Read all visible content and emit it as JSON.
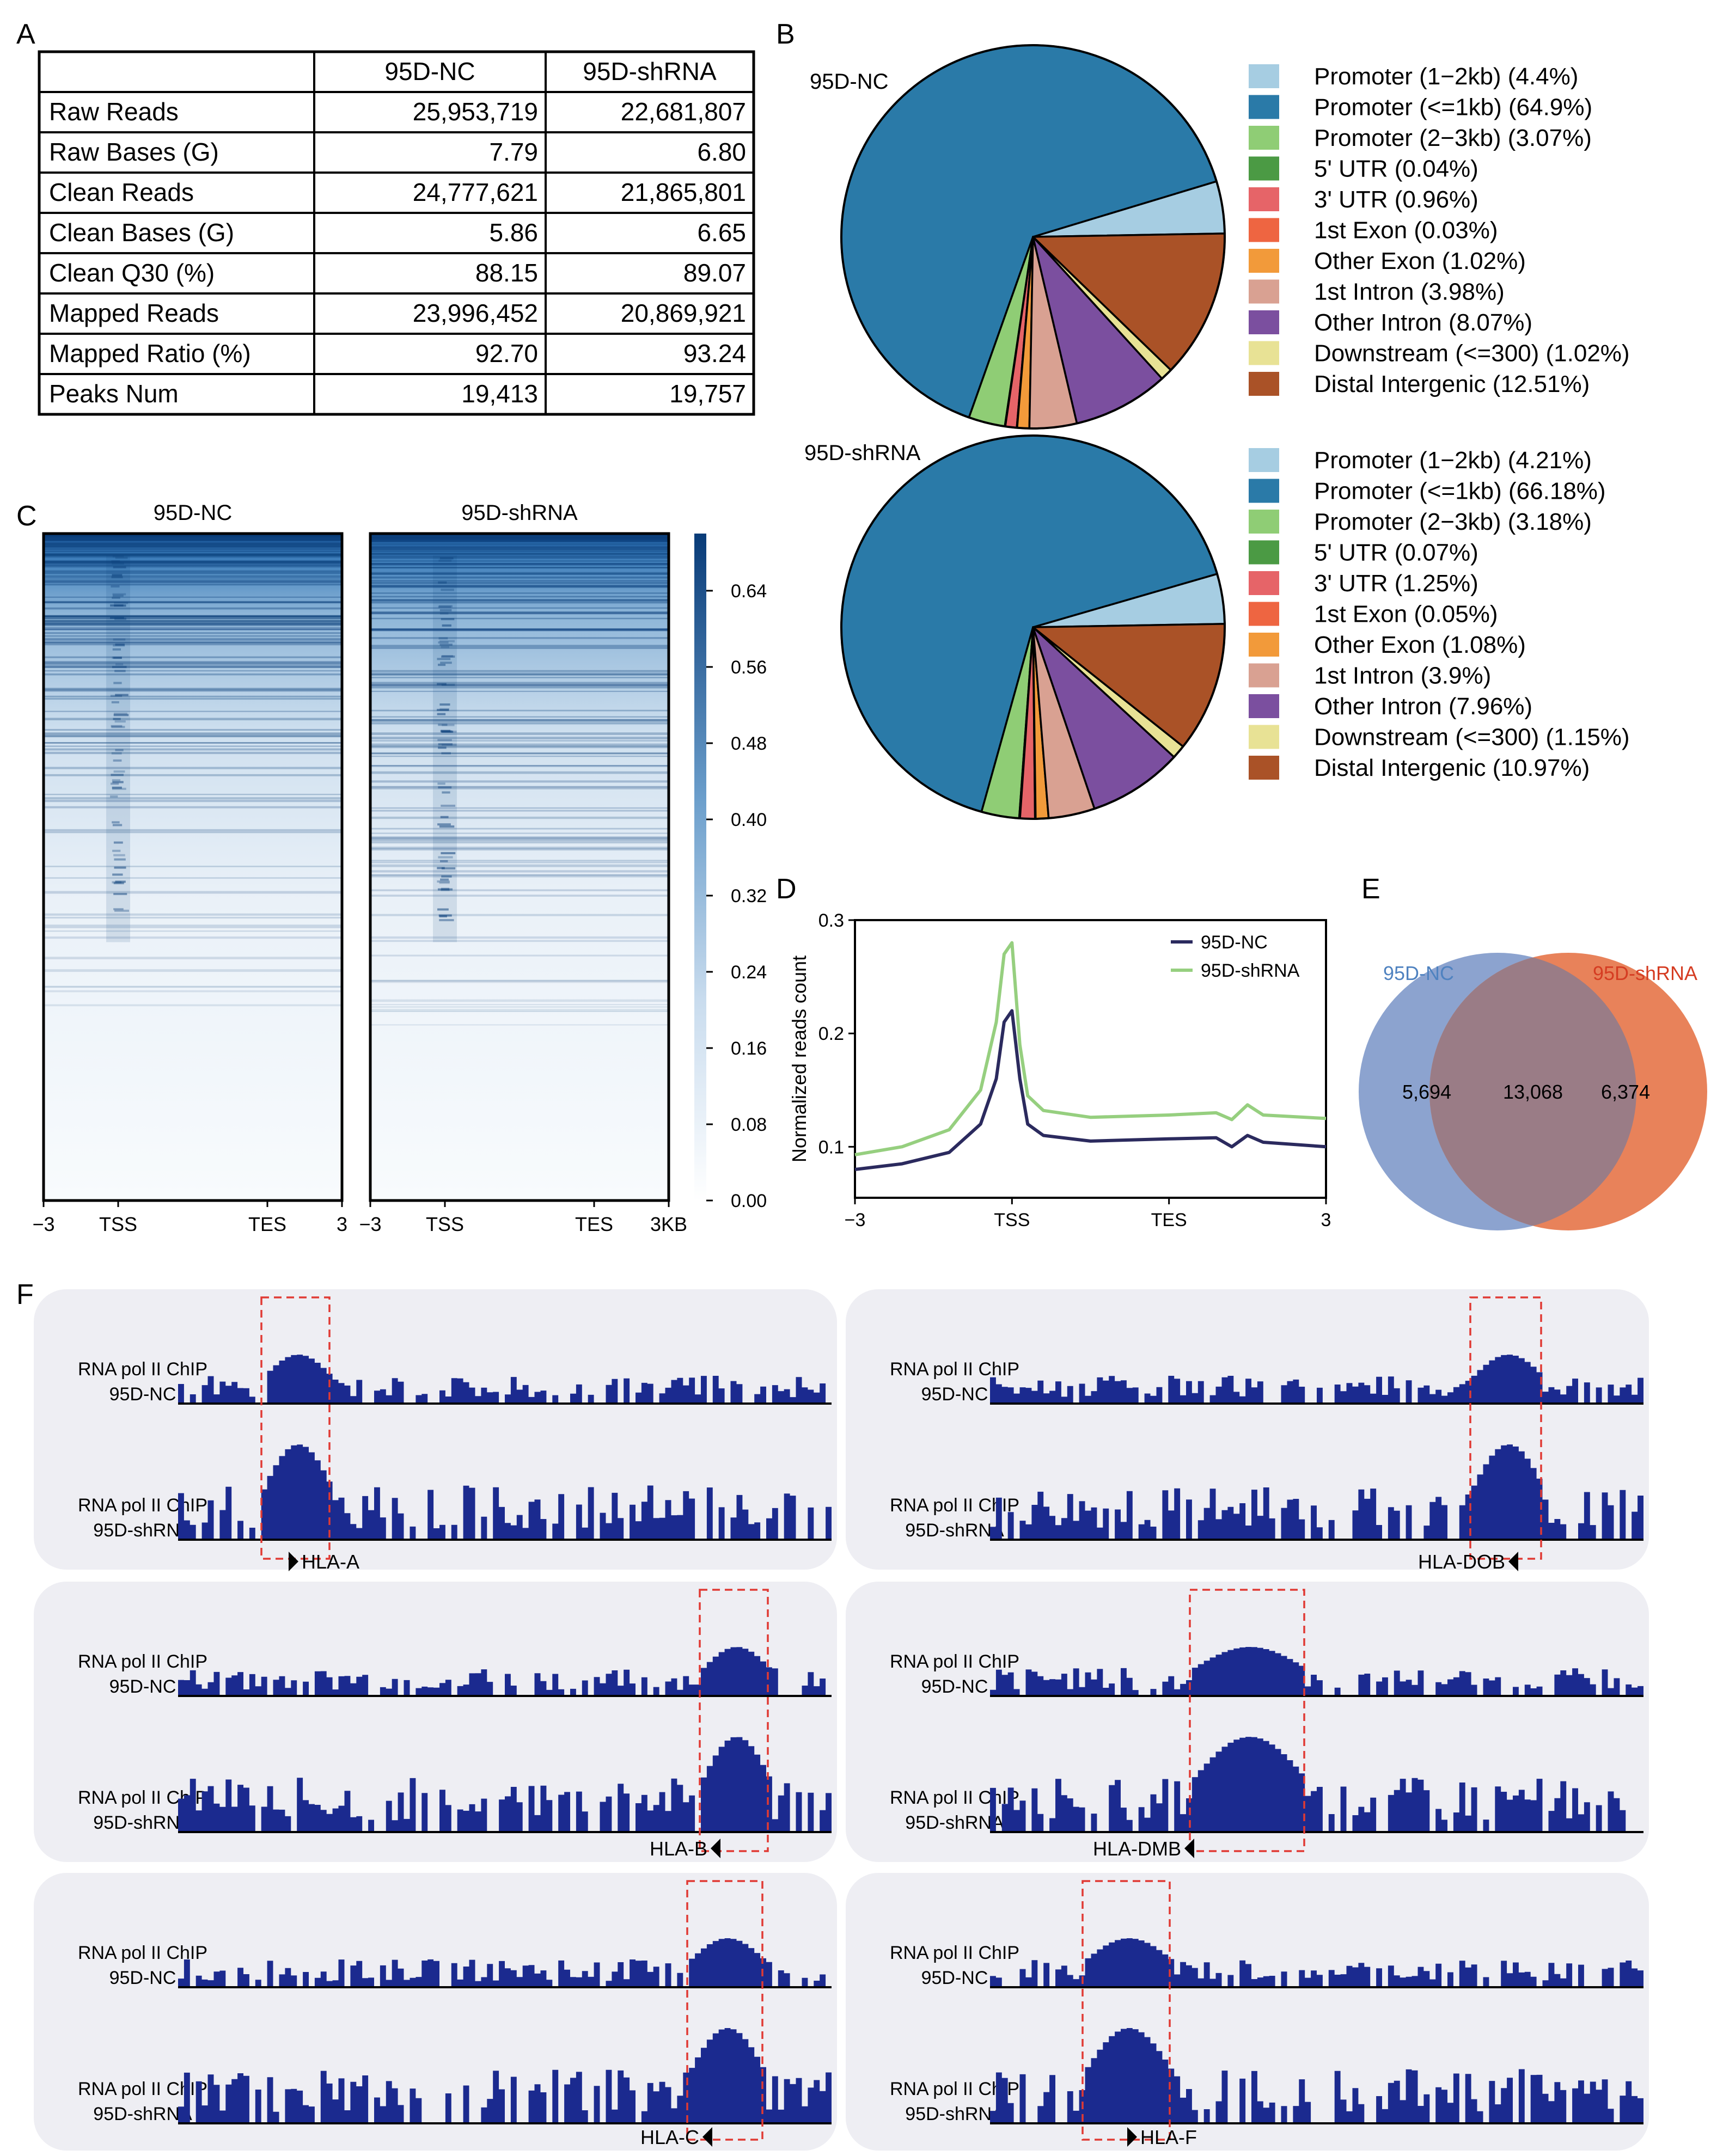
{
  "panels": {
    "a": "A",
    "b": "B",
    "c": "C",
    "d": "D",
    "e": "E",
    "f": "F"
  },
  "table": {
    "headers": [
      "",
      "95D-NC",
      "95D-shRNA"
    ],
    "rows": [
      [
        "Raw Reads",
        "25,953,719",
        "22,681,807"
      ],
      [
        "Raw Bases (G)",
        "7.79",
        "6.80"
      ],
      [
        "Clean Reads",
        "24,777,621",
        "21,865,801"
      ],
      [
        "Clean Bases (G)",
        "5.86",
        "6.65"
      ],
      [
        "Clean Q30 (%)",
        "88.15",
        "89.07"
      ],
      [
        "Mapped Reads",
        "23,996,452",
        "20,869,921"
      ],
      [
        "Mapped Ratio (%)",
        "92.70",
        "93.24"
      ],
      [
        "Peaks Num",
        "19,413",
        "19,757"
      ]
    ]
  },
  "colors": {
    "pie": [
      "#a6cde2",
      "#2a7aa8",
      "#8fcd75",
      "#4b9a44",
      "#e66468",
      "#ee6541",
      "#f29a3a",
      "#d9a192",
      "#7b4f9f",
      "#e8e295",
      "#aa5227"
    ],
    "heat_dark": "#0b3f7a",
    "nc_line": "#2b2a5e",
    "sh_line": "#96cf7f",
    "venn_nc": "#8ca3cf",
    "venn_sh": "#e8825a",
    "venn_overlap": "#9a7c86",
    "venn_nc_text": "#4f82c0",
    "venn_sh_text": "#d53c22",
    "track_fill": "#1b2a8f",
    "track_bg": "#eeeef3",
    "box": "#e03a34"
  },
  "chart_data": [
    {
      "type": "pie",
      "title": "95D-NC",
      "categories": [
        "Promoter (1−2kb)",
        "Promoter (<=1kb)",
        "Promoter (2−3kb)",
        "5' UTR",
        "3' UTR",
        "1st Exon",
        "Other Exon",
        "1st Intron",
        "Other Intron",
        "Downstream (<=300)",
        "Distal Intergenic"
      ],
      "values": [
        4.4,
        64.9,
        3.07,
        0.04,
        0.96,
        0.03,
        1.02,
        3.98,
        8.07,
        1.02,
        12.51
      ],
      "legend": [
        "Promoter (1−2kb) (4.4%)",
        "Promoter (<=1kb) (64.9%)",
        "Promoter (2−3kb) (3.07%)",
        "5' UTR (0.04%)",
        "3' UTR (0.96%)",
        "1st Exon (0.03%)",
        "Other Exon (1.02%)",
        "1st Intron (3.98%)",
        "Other Intron (8.07%)",
        "Downstream (<=300) (1.02%)",
        "Distal Intergenic (12.51%)"
      ],
      "legend_position": "right"
    },
    {
      "type": "pie",
      "title": "95D-shRNA",
      "categories": [
        "Promoter (1−2kb)",
        "Promoter (<=1kb)",
        "Promoter (2−3kb)",
        "5' UTR",
        "3' UTR",
        "1st Exon",
        "Other Exon",
        "1st Intron",
        "Other Intron",
        "Downstream (<=300)",
        "Distal Intergenic"
      ],
      "values": [
        4.21,
        66.18,
        3.18,
        0.07,
        1.25,
        0.05,
        1.08,
        3.9,
        7.96,
        1.15,
        10.97
      ],
      "legend": [
        "Promoter (1−2kb) (4.21%)",
        "Promoter (<=1kb) (66.18%)",
        "Promoter (2−3kb) (3.18%)",
        "5' UTR (0.07%)",
        "3' UTR (1.25%)",
        "1st Exon (0.05%)",
        "Other Exon (1.08%)",
        "1st Intron (3.9%)",
        "Other Intron (7.96%)",
        "Downstream (<=300) (1.15%)",
        "Distal Intergenic (10.97%)"
      ],
      "legend_position": "right"
    },
    {
      "type": "heatmap",
      "panel_titles": [
        "95D-NC",
        "95D-shRNA"
      ],
      "x_tick_labels": [
        [
          "−3",
          "TSS",
          "TES",
          "3"
        ],
        [
          "−3",
          "TSS",
          "TES",
          "3KB"
        ]
      ],
      "colorbar_ticks": [
        0.64,
        0.56,
        0.48,
        0.4,
        0.32,
        0.24,
        0.16,
        0.08,
        0.0
      ],
      "colorbar_labels": [
        "0.64",
        "0.56",
        "0.48",
        "0.40",
        "0.32",
        "0.24",
        "0.16",
        "0.08",
        "0.00"
      ],
      "colorbar_range": [
        0,
        0.7
      ]
    },
    {
      "type": "line",
      "ylabel": "Normalized reads count",
      "x_tick_labels": [
        "−3",
        "TSS",
        "TES",
        "3"
      ],
      "x_ticks": [
        0,
        1,
        2,
        3
      ],
      "y_ticks": [
        0.1,
        0.2,
        0.3
      ],
      "y_tick_labels": [
        "0.1",
        "0.2",
        "0.3"
      ],
      "ylim": [
        0.055,
        0.3
      ],
      "legend_position": "top-right",
      "series": [
        {
          "name": "95D-NC",
          "x": [
            0,
            0.3,
            0.6,
            0.8,
            0.9,
            0.95,
            1.0,
            1.05,
            1.1,
            1.2,
            1.5,
            2.0,
            2.3,
            2.4,
            2.5,
            2.6,
            3.0
          ],
          "values": [
            0.08,
            0.085,
            0.095,
            0.12,
            0.16,
            0.21,
            0.22,
            0.16,
            0.12,
            0.11,
            0.105,
            0.107,
            0.108,
            0.1,
            0.11,
            0.104,
            0.1
          ]
        },
        {
          "name": "95D-shRNA",
          "x": [
            0,
            0.3,
            0.6,
            0.8,
            0.9,
            0.95,
            1.0,
            1.05,
            1.1,
            1.2,
            1.5,
            2.0,
            2.3,
            2.4,
            2.5,
            2.6,
            3.0
          ],
          "values": [
            0.093,
            0.1,
            0.115,
            0.15,
            0.21,
            0.27,
            0.28,
            0.19,
            0.145,
            0.132,
            0.126,
            0.128,
            0.13,
            0.124,
            0.137,
            0.128,
            0.125
          ]
        }
      ]
    },
    {
      "type": "venn",
      "sets": [
        "95D-NC",
        "95D-shRNA"
      ],
      "values": {
        "only_a": "5,694",
        "overlap": "13,068",
        "only_b": "6,374"
      }
    }
  ],
  "tracks": {
    "row_labels": {
      "nc": [
        "RNA pol II ChIP",
        "95D-NC"
      ],
      "sh": [
        "RNA pol II ChIP",
        "95D-shRNA"
      ]
    },
    "genes": [
      {
        "name": "HLA-A",
        "dir": "right"
      },
      {
        "name": "HLA-DOB",
        "dir": "left"
      },
      {
        "name": "HLA-B",
        "dir": "left"
      },
      {
        "name": "HLA-DMB",
        "dir": "left"
      },
      {
        "name": "HLA-C",
        "dir": "left"
      },
      {
        "name": "HLA-F",
        "dir": "right"
      }
    ]
  }
}
